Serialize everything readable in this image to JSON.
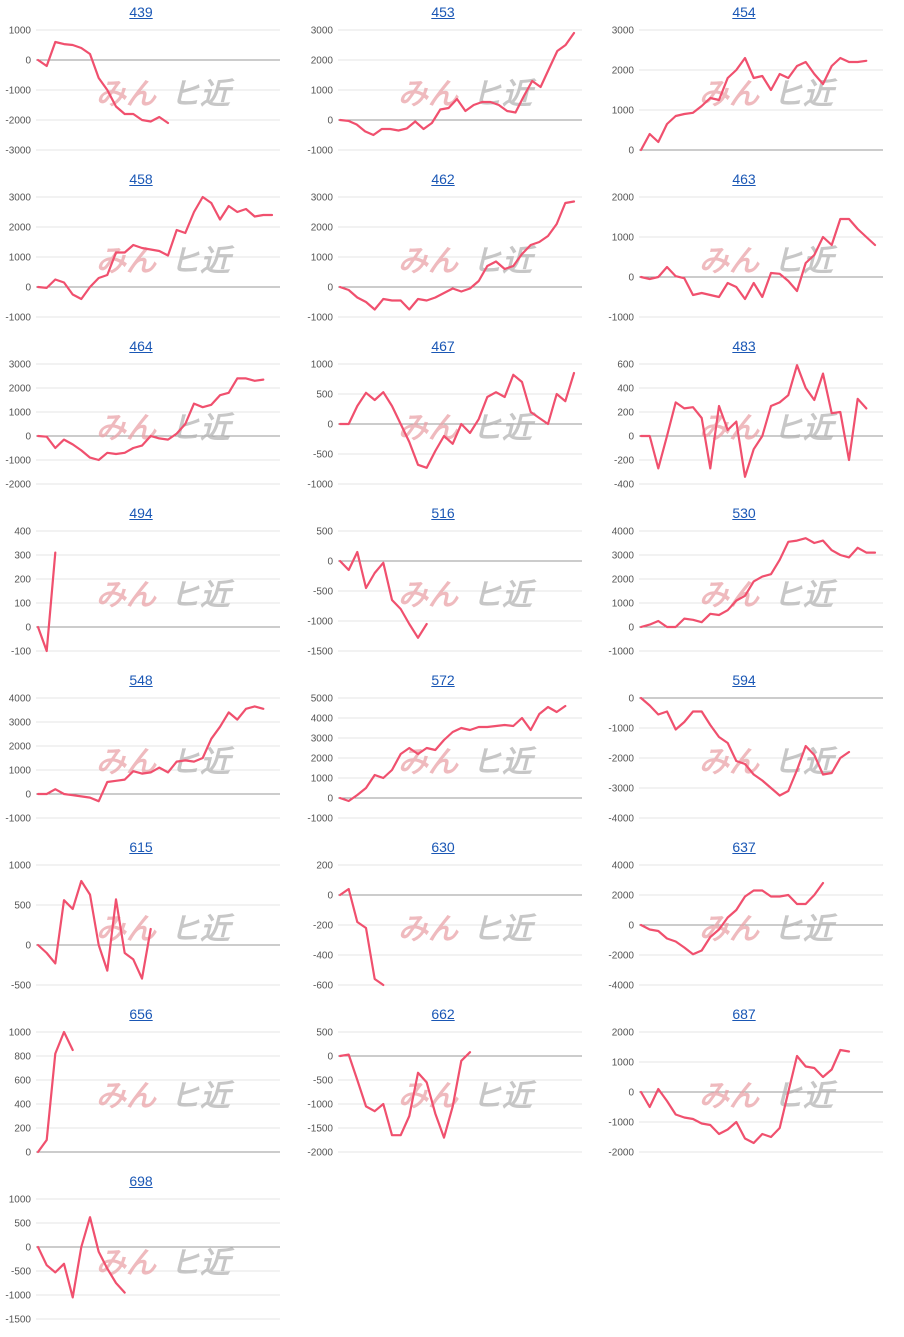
{
  "watermark": {
    "left": "みん",
    "right": "ヒ近",
    "left_color": "#e9a3a8",
    "right_color": "#b4b4b4"
  },
  "style": {
    "line_color": "#f0506e",
    "grid_color": "#dcdcdc",
    "zero_color": "#999999",
    "title_color": "#1a57b5"
  },
  "chart_data": [
    {
      "type": "line",
      "title": "439",
      "ylim": [
        -3000,
        1000
      ],
      "yticks": [
        1000,
        0,
        -1000,
        -2000,
        -3000
      ],
      "values": [
        0,
        -200,
        600,
        530,
        500,
        400,
        200,
        -600,
        -1000,
        -1550,
        -1800,
        -1800,
        -2000,
        -2050,
        -1900,
        -2100
      ]
    },
    {
      "type": "line",
      "title": "453",
      "ylim": [
        -1000,
        3000
      ],
      "yticks": [
        3000,
        2000,
        1000,
        0,
        -1000
      ],
      "values": [
        0,
        -30,
        -150,
        -380,
        -500,
        -300,
        -300,
        -350,
        -280,
        -50,
        -300,
        -100,
        350,
        400,
        700,
        300,
        500,
        600,
        600,
        500,
        300,
        250,
        800,
        1300,
        1100,
        1700,
        2300,
        2500,
        2900
      ]
    },
    {
      "type": "line",
      "title": "454",
      "ylim": [
        0,
        3000
      ],
      "yticks": [
        3000,
        2000,
        1000,
        0
      ],
      "values": [
        0,
        400,
        200,
        650,
        850,
        900,
        930,
        1100,
        1300,
        1250,
        1800,
        2000,
        2300,
        1800,
        1850,
        1500,
        1900,
        1800,
        2100,
        2200,
        1900,
        1650,
        2100,
        2300,
        2200,
        2200,
        2230
      ]
    },
    {
      "type": "line",
      "title": "458",
      "ylim": [
        -1000,
        3000
      ],
      "yticks": [
        3000,
        2000,
        1000,
        0,
        -1000
      ],
      "values": [
        0,
        -30,
        250,
        150,
        -250,
        -400,
        0,
        300,
        400,
        1150,
        1150,
        1400,
        1300,
        1250,
        1200,
        1050,
        1900,
        1800,
        2500,
        3000,
        2800,
        2250,
        2700,
        2500,
        2600,
        2350,
        2400,
        2400
      ]
    },
    {
      "type": "line",
      "title": "462",
      "ylim": [
        -1000,
        3000
      ],
      "yticks": [
        3000,
        2000,
        1000,
        0,
        -1000
      ],
      "values": [
        0,
        -100,
        -350,
        -500,
        -750,
        -400,
        -450,
        -450,
        -750,
        -400,
        -450,
        -350,
        -200,
        -50,
        -150,
        -50,
        200,
        700,
        850,
        600,
        700,
        1100,
        1400,
        1500,
        1700,
        2100,
        2800,
        2850
      ]
    },
    {
      "type": "line",
      "title": "463",
      "ylim": [
        -1000,
        2000
      ],
      "yticks": [
        2000,
        1000,
        0,
        -1000
      ],
      "values": [
        0,
        -50,
        0,
        250,
        20,
        -30,
        -450,
        -400,
        -450,
        -500,
        -150,
        -250,
        -550,
        -150,
        -500,
        100,
        80,
        -100,
        -350,
        350,
        550,
        1000,
        800,
        1450,
        1450,
        1200,
        1000,
        800
      ]
    },
    {
      "type": "line",
      "title": "464",
      "ylim": [
        -2000,
        3000
      ],
      "yticks": [
        3000,
        2000,
        1000,
        0,
        -1000,
        -2000
      ],
      "values": [
        0,
        -30,
        -500,
        -150,
        -350,
        -600,
        -900,
        -1000,
        -700,
        -750,
        -700,
        -500,
        -400,
        0,
        -100,
        -150,
        100,
        500,
        1350,
        1200,
        1300,
        1700,
        1800,
        2400,
        2400,
        2300,
        2350
      ]
    },
    {
      "type": "line",
      "title": "467",
      "ylim": [
        -1000,
        1000
      ],
      "yticks": [
        1000,
        500,
        0,
        -500,
        -1000
      ],
      "values": [
        0,
        0,
        300,
        520,
        400,
        530,
        300,
        0,
        -300,
        -680,
        -730,
        -450,
        -200,
        -330,
        0,
        -150,
        80,
        450,
        530,
        450,
        820,
        700,
        200,
        100,
        0,
        500,
        380,
        850
      ]
    },
    {
      "type": "line",
      "title": "483",
      "ylim": [
        -400,
        600
      ],
      "yticks": [
        600,
        400,
        200,
        0,
        -200,
        -400
      ],
      "values": [
        0,
        0,
        -270,
        0,
        280,
        230,
        240,
        150,
        -270,
        250,
        50,
        120,
        -340,
        -110,
        0,
        250,
        280,
        340,
        590,
        400,
        300,
        520,
        190,
        200,
        -200,
        310,
        230
      ]
    },
    {
      "type": "line",
      "title": "494",
      "ylim": [
        -100,
        400
      ],
      "yticks": [
        400,
        300,
        200,
        100,
        0,
        -100
      ],
      "values": [
        0,
        -100,
        310
      ]
    },
    {
      "type": "line",
      "title": "516",
      "ylim": [
        -1500,
        500
      ],
      "yticks": [
        500,
        0,
        -500,
        -1000,
        -1500
      ],
      "values": [
        0,
        -150,
        150,
        -450,
        -200,
        -30,
        -650,
        -800,
        -1050,
        -1280,
        -1050
      ]
    },
    {
      "type": "line",
      "title": "530",
      "ylim": [
        -1000,
        4000
      ],
      "yticks": [
        4000,
        3000,
        2000,
        1000,
        0,
        -1000
      ],
      "values": [
        0,
        100,
        250,
        0,
        0,
        350,
        300,
        200,
        550,
        500,
        700,
        1100,
        1300,
        1900,
        2100,
        2200,
        2800,
        3550,
        3600,
        3700,
        3500,
        3600,
        3200,
        3000,
        2900,
        3300,
        3100,
        3100
      ]
    },
    {
      "type": "line",
      "title": "548",
      "ylim": [
        -1000,
        4000
      ],
      "yticks": [
        4000,
        3000,
        2000,
        1000,
        0,
        -1000
      ],
      "values": [
        0,
        0,
        200,
        0,
        -50,
        -100,
        -150,
        -300,
        500,
        550,
        600,
        950,
        850,
        900,
        1100,
        900,
        1350,
        1400,
        1350,
        1500,
        2300,
        2800,
        3400,
        3100,
        3550,
        3650,
        3550
      ]
    },
    {
      "type": "line",
      "title": "572",
      "ylim": [
        -1000,
        5000
      ],
      "yticks": [
        5000,
        4000,
        3000,
        2000,
        1000,
        0,
        -1000
      ],
      "values": [
        0,
        -150,
        150,
        500,
        1150,
        1000,
        1400,
        2200,
        2500,
        2200,
        2500,
        2400,
        2900,
        3300,
        3500,
        3400,
        3550,
        3550,
        3600,
        3650,
        3600,
        4000,
        3400,
        4200,
        4550,
        4300,
        4600
      ]
    },
    {
      "type": "line",
      "title": "594",
      "ylim": [
        -4000,
        0
      ],
      "yticks": [
        0,
        -1000,
        -2000,
        -3000,
        -4000
      ],
      "values": [
        0,
        -250,
        -550,
        -450,
        -1050,
        -800,
        -450,
        -450,
        -900,
        -1300,
        -1500,
        -2100,
        -2200,
        -2550,
        -2750,
        -3000,
        -3250,
        -3100,
        -2400,
        -1600,
        -1900,
        -2550,
        -2500,
        -2000,
        -1800
      ]
    },
    {
      "type": "line",
      "title": "615",
      "ylim": [
        -500,
        1000
      ],
      "yticks": [
        1000,
        500,
        0,
        -500
      ],
      "values": [
        0,
        -100,
        -230,
        560,
        450,
        800,
        630,
        0,
        -320,
        570,
        -100,
        -180,
        -420,
        200
      ]
    },
    {
      "type": "line",
      "title": "630",
      "ylim": [
        -600,
        200
      ],
      "yticks": [
        200,
        0,
        -200,
        -400,
        -600
      ],
      "values": [
        0,
        40,
        -180,
        -220,
        -560,
        -600
      ]
    },
    {
      "type": "line",
      "title": "637",
      "ylim": [
        -4000,
        4000
      ],
      "yticks": [
        4000,
        2000,
        0,
        -2000,
        -4000
      ],
      "values": [
        0,
        -300,
        -400,
        -900,
        -1100,
        -1500,
        -1950,
        -1700,
        -800,
        -300,
        500,
        1000,
        1900,
        2300,
        2300,
        1900,
        1900,
        2000,
        1400,
        1400,
        2000,
        2800
      ]
    },
    {
      "type": "line",
      "title": "656",
      "ylim": [
        0,
        1000
      ],
      "yticks": [
        1000,
        800,
        600,
        400,
        200,
        0
      ],
      "values": [
        0,
        100,
        820,
        1000,
        850
      ]
    },
    {
      "type": "line",
      "title": "662",
      "ylim": [
        -2000,
        500
      ],
      "yticks": [
        500,
        0,
        -500,
        -1000,
        -1500,
        -2000
      ],
      "values": [
        0,
        30,
        -500,
        -1050,
        -1150,
        -1000,
        -1650,
        -1650,
        -1250,
        -350,
        -550,
        -1200,
        -1700,
        -1050,
        -100,
        80
      ]
    },
    {
      "type": "line",
      "title": "687",
      "ylim": [
        -2000,
        2000
      ],
      "yticks": [
        2000,
        1000,
        0,
        -1000,
        -2000
      ],
      "values": [
        0,
        -500,
        100,
        -300,
        -750,
        -850,
        -900,
        -1050,
        -1100,
        -1400,
        -1250,
        -1000,
        -1550,
        -1700,
        -1400,
        -1500,
        -1200,
        0,
        1200,
        850,
        800,
        500,
        750,
        1400,
        1350
      ]
    },
    {
      "type": "line",
      "title": "698",
      "ylim": [
        -1500,
        1000
      ],
      "yticks": [
        1000,
        500,
        0,
        -500,
        -1000,
        -1500
      ],
      "values": [
        0,
        -380,
        -530,
        -350,
        -1050,
        0,
        620,
        -100,
        -450,
        -750,
        -950
      ]
    }
  ]
}
